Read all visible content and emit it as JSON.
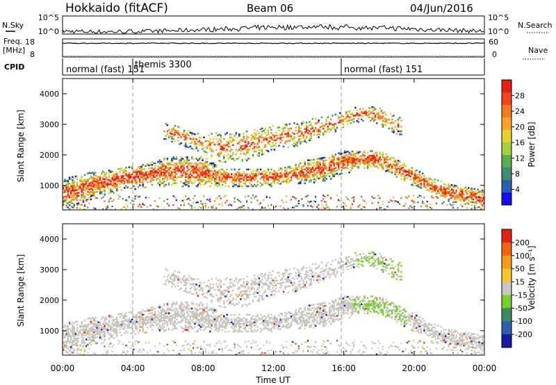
{
  "header": {
    "station": "Hokkaido (fitACF)",
    "beam": "Beam 06",
    "date": "04/Jun/2016"
  },
  "params": {
    "nsky_label": "N.Sky",
    "nsky_ticks": [
      "10^5",
      "10^0"
    ],
    "nsearch_label": "N.Search",
    "nsearch_ticks": [
      "10^5",
      "10^0"
    ],
    "freq_label_1": "Freq.",
    "freq_label_2": "[MHz]",
    "freq_ticks": [
      "18",
      "8"
    ],
    "nave_label": "Nave",
    "nave_ticks": [
      "60",
      "0"
    ],
    "cpid_label": "CPID"
  },
  "cpid_segments": [
    {
      "label": "normal (fast) 151",
      "start_hour": 0
    },
    {
      "label": "themis 3300",
      "start_hour": 4
    },
    {
      "label": "normal (fast) 151",
      "start_hour": 16
    }
  ],
  "chart_data": [
    {
      "type": "heatmap",
      "panel": "power",
      "ylabel": "Slant Range [km]",
      "xlim": [
        0,
        24
      ],
      "ylim": [
        200,
        4500
      ],
      "yticks": [
        1000,
        2000,
        3000,
        4000
      ],
      "colorbar": {
        "label": "Power [dB]",
        "ticks": [
          4,
          8,
          12,
          16,
          20,
          24,
          28
        ],
        "colors": [
          "#1212e6",
          "#2a5fb0",
          "#3d8c6e",
          "#58b050",
          "#a6cf3c",
          "#e6d22a",
          "#f5a62a",
          "#f57a1e",
          "#f0461a",
          "#e61e14"
        ]
      },
      "bands": [
        {
          "name": "lower",
          "hours": [
            0,
            1,
            2,
            3,
            4,
            5,
            6,
            7,
            8,
            9,
            10,
            11,
            12,
            13,
            14,
            15,
            16,
            17,
            18,
            19,
            20,
            21,
            22,
            23,
            24
          ],
          "range_km": [
            800,
            900,
            1100,
            1200,
            1300,
            1400,
            1500,
            1500,
            1500,
            1300,
            1300,
            1300,
            1300,
            1400,
            1500,
            1600,
            1800,
            1900,
            1900,
            1600,
            1300,
            1000,
            800,
            700,
            600
          ],
          "width_km": [
            500,
            500,
            400,
            400,
            400,
            400,
            500,
            500,
            500,
            300,
            300,
            300,
            300,
            300,
            400,
            400,
            400,
            300,
            300,
            300,
            300,
            300,
            300,
            300,
            300
          ]
        },
        {
          "name": "upper",
          "hours": [
            6,
            7,
            8,
            9,
            10,
            11,
            12,
            13,
            14,
            15,
            16,
            17,
            18,
            19
          ],
          "range_km": [
            2800,
            2600,
            2400,
            2300,
            2300,
            2400,
            2600,
            2700,
            2800,
            3000,
            3200,
            3400,
            3300,
            3000
          ],
          "width_km": [
            300,
            300,
            300,
            500,
            500,
            500,
            400,
            400,
            400,
            300,
            300,
            300,
            300,
            300
          ]
        }
      ]
    },
    {
      "type": "heatmap",
      "panel": "velocity",
      "ylabel": "Slant Range [km]",
      "xlabel": "Time UT",
      "xlim": [
        0,
        24
      ],
      "ylim": [
        200,
        4500
      ],
      "yticks": [
        1000,
        2000,
        3000,
        4000
      ],
      "xticks": [
        "00:00",
        "04:00",
        "08:00",
        "12:00",
        "16:00",
        "20:00",
        "00:00"
      ],
      "colorbar": {
        "label": "Velocity [m s⁻¹]",
        "ticks": [
          "200",
          "100",
          "50",
          "15",
          "-15",
          "-50",
          "-100",
          "-200"
        ],
        "colors": [
          "#1a1aa8",
          "#2a5fb0",
          "#3d8c5e",
          "#7ccd32",
          "#c8c8c0",
          "#f5c82a",
          "#f59a1e",
          "#f0641a",
          "#e61e14"
        ]
      }
    }
  ]
}
